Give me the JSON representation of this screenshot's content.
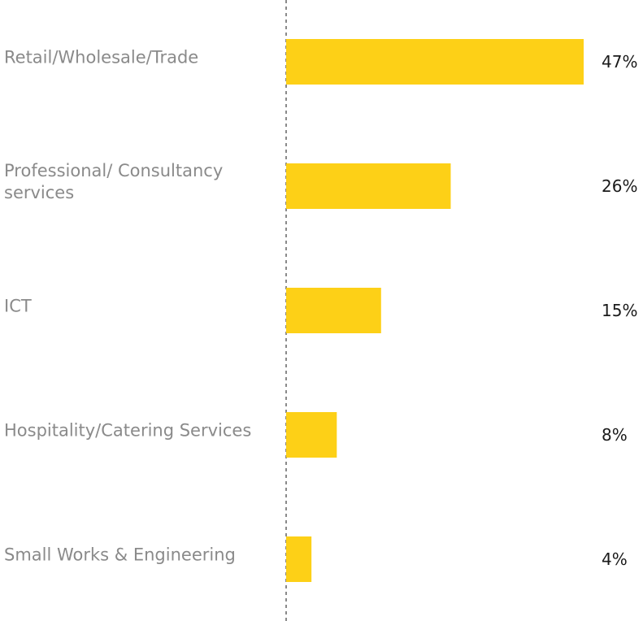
{
  "chart_data": {
    "type": "bar",
    "orientation": "horizontal",
    "categories": [
      "Retail/Wholesale/Trade",
      "Professional/ Consultancy services",
      "ICT",
      "Hospitality/Catering Services",
      "Small Works & Engineering"
    ],
    "values": [
      47,
      26,
      15,
      8,
      4
    ],
    "value_labels": [
      "47%",
      "26%",
      "15%",
      "8%",
      "4%"
    ],
    "color": "#fdd017"
  }
}
